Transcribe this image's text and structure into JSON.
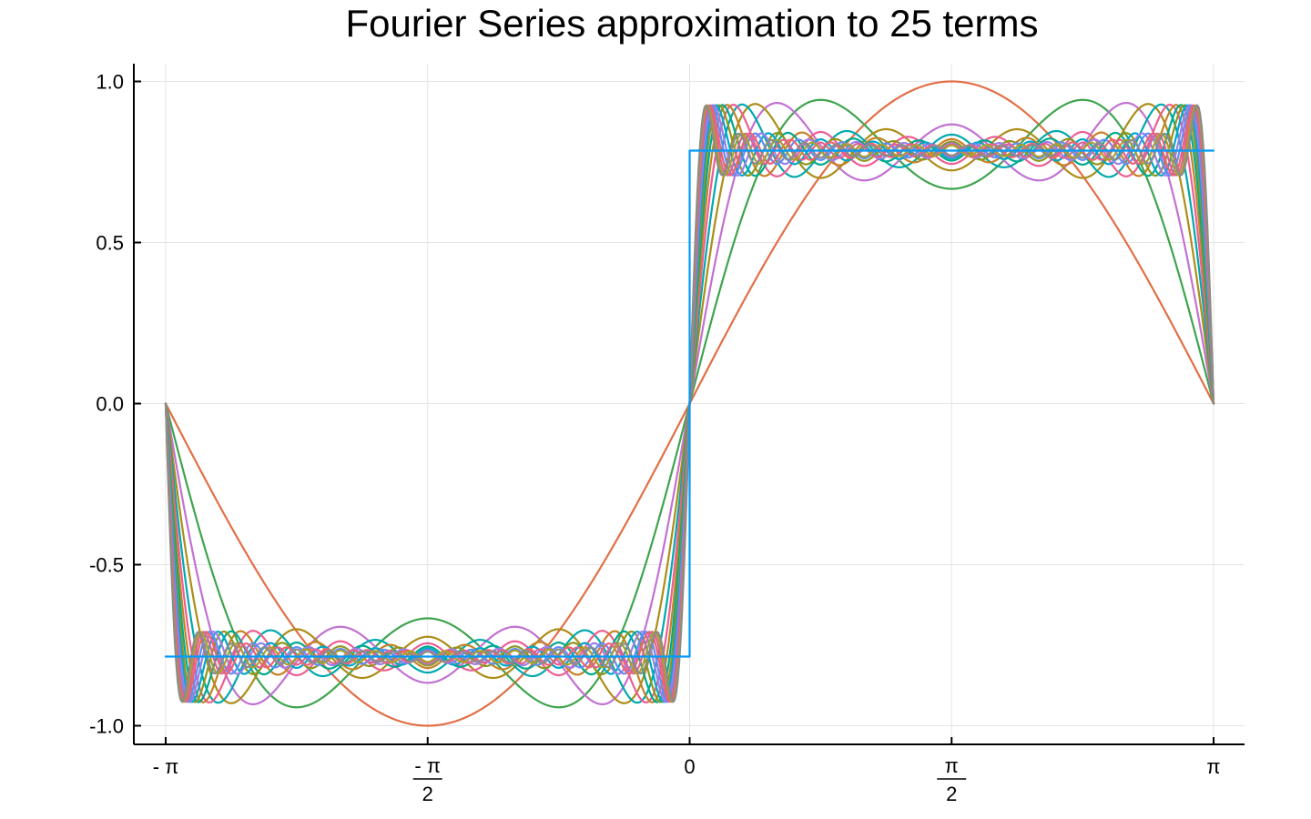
{
  "chart_data": {
    "type": "line",
    "title": "Fourier Series approximation to 25 terms",
    "xlabel": "",
    "ylabel": "",
    "xlim": [
      -3.14159,
      3.14159
    ],
    "ylim": [
      -1.05,
      1.05
    ],
    "grid": true,
    "legend": "none",
    "x_ticks": [
      {
        "value": -3.14159,
        "label": "- π",
        "denominator": ""
      },
      {
        "value": -1.5708,
        "label": "- π",
        "denominator": "2"
      },
      {
        "value": 0,
        "label": "0",
        "denominator": ""
      },
      {
        "value": 1.5708,
        "label": "π",
        "denominator": "2"
      },
      {
        "value": 3.14159,
        "label": "π",
        "denominator": ""
      }
    ],
    "y_ticks": [
      {
        "value": 1.0,
        "label": "1.0"
      },
      {
        "value": 0.5,
        "label": "0.5"
      },
      {
        "value": 0.0,
        "label": "0.0"
      },
      {
        "value": -0.5,
        "label": "-0.5"
      },
      {
        "value": -1.0,
        "label": "-1.0"
      }
    ],
    "square_wave": {
      "amplitude": 0.7854,
      "color": "#009AFA",
      "x": [
        -3.14159,
        -0.0001,
        0.0001,
        3.14159
      ],
      "y": [
        -0.7854,
        -0.7854,
        0.7854,
        0.7854
      ]
    },
    "series": [
      {
        "harmonics": 1,
        "color": "#E26F46"
      },
      {
        "harmonics": 3,
        "color": "#3EA44E"
      },
      {
        "harmonics": 5,
        "color": "#C271D2"
      },
      {
        "harmonics": 7,
        "color": "#AC8D18"
      },
      {
        "harmonics": 9,
        "color": "#00A9AD"
      },
      {
        "harmonics": 11,
        "color": "#ED5E93"
      },
      {
        "harmonics": 13,
        "color": "#C68225"
      },
      {
        "harmonics": 15,
        "color": "#00A98D"
      },
      {
        "harmonics": 17,
        "color": "#8E971D"
      },
      {
        "harmonics": 19,
        "color": "#00A8CB"
      },
      {
        "harmonics": 21,
        "color": "#9B7FE9"
      },
      {
        "harmonics": 23,
        "color": "#618DF6"
      },
      {
        "harmonics": 25,
        "color": "#F06173"
      },
      {
        "harmonics": 27,
        "color": "#DD6490"
      },
      {
        "harmonics": 29,
        "color": "#A9A02E"
      },
      {
        "harmonics": 31,
        "color": "#8B8B8B"
      }
    ]
  }
}
